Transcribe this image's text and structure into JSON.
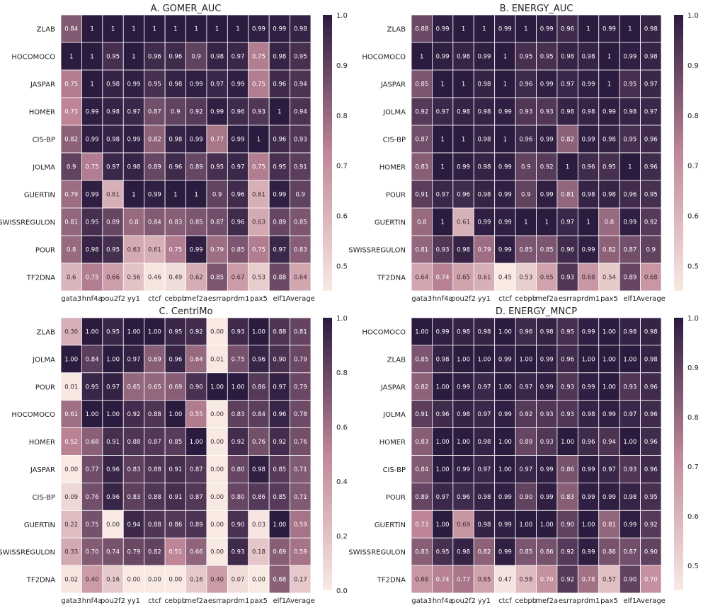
{
  "chart_data": [
    {
      "type": "heatmap",
      "title": "A.  GOMER_AUC",
      "columns": [
        "gata3",
        "hnf4a",
        "pou2f2",
        "yy1",
        "ctcf",
        "cebpb",
        "mef2a",
        "esrra",
        "prdm1",
        "pax5",
        "elf1",
        "Average"
      ],
      "rows": [
        "ZLAB",
        "HOCOMOCO",
        "JASPAR",
        "HOMER",
        "CIS-BP",
        "JOLMA",
        "GUERTIN",
        "SWISSREGULON",
        "POUR",
        "TF2DNA"
      ],
      "labels": [
        [
          "0.84",
          "1",
          "1",
          "1",
          "1",
          "1",
          "1",
          "1",
          "1",
          "0.99",
          "0.99",
          "0.98"
        ],
        [
          "1",
          "1",
          "0.95",
          "1",
          "0.96",
          "0.96",
          "0.9",
          "0.98",
          "0.97",
          "0.75",
          "0.98",
          "0.95"
        ],
        [
          "0.75",
          "1",
          "0.98",
          "0.99",
          "0.95",
          "0.98",
          "0.99",
          "0.97",
          "0.99",
          "0.75",
          "0.96",
          "0.94"
        ],
        [
          "0.73",
          "0.99",
          "0.98",
          "0.97",
          "0.87",
          "0.9",
          "0.92",
          "0.99",
          "0.96",
          "0.93",
          "1",
          "0.94"
        ],
        [
          "0.82",
          "0.99",
          "0.98",
          "0.99",
          "0.82",
          "0.98",
          "0.99",
          "0.77",
          "0.99",
          "1",
          "0.96",
          "0.93"
        ],
        [
          "0.9",
          "0.75",
          "0.97",
          "0.98",
          "0.89",
          "0.96",
          "0.89",
          "0.95",
          "0.97",
          "0.75",
          "0.95",
          "0.91"
        ],
        [
          "0.79",
          "0.99",
          "0.61",
          "1",
          "0.99",
          "1",
          "1",
          "0.9",
          "0.96",
          "0.61",
          "0.99",
          "0.9"
        ],
        [
          "0.81",
          "0.95",
          "0.89",
          "0.8",
          "0.84",
          "0.83",
          "0.85",
          "0.87",
          "0.96",
          "0.63",
          "0.89",
          "0.85"
        ],
        [
          "0.8",
          "0.98",
          "0.95",
          "0.63",
          "0.61",
          "0.75",
          "0.99",
          "0.79",
          "0.85",
          "0.75",
          "0.97",
          "0.83"
        ],
        [
          "0.6",
          "0.75",
          "0.66",
          "0.56",
          "0.46",
          "0.49",
          "0.62",
          "0.85",
          "0.67",
          "0.53",
          "0.88",
          "0.64"
        ]
      ],
      "colorbar": {
        "min": 0.45,
        "max": 1.0,
        "ticks": [
          "1.0",
          "0.9",
          "0.8",
          "0.7",
          "0.6",
          "0.5"
        ],
        "tick_values": [
          1.0,
          0.9,
          0.8,
          0.7,
          0.6,
          0.5
        ]
      }
    },
    {
      "type": "heatmap",
      "title": "B.  ENERGY_AUC",
      "columns": [
        "gata3",
        "hnf4a",
        "pou2f2",
        "yy1",
        "ctcf",
        "cebpb",
        "mef2a",
        "esrra",
        "prdm1",
        "pax5",
        "elf1",
        "Average"
      ],
      "rows": [
        "ZLAB",
        "HOCOMOCO",
        "JASPAR",
        "JOLMA",
        "CIS-BP",
        "HOMER",
        "POUR",
        "GUERTIN",
        "SWISSREGULON",
        "TF2DNA"
      ],
      "labels": [
        [
          "0.88",
          "0.99",
          "1",
          "1",
          "0.99",
          "1",
          "0.99",
          "0.96",
          "1",
          "0.99",
          "1",
          "0.98"
        ],
        [
          "1",
          "0.99",
          "0.98",
          "0.99",
          "1",
          "0.95",
          "0.95",
          "0.98",
          "0.98",
          "1",
          "0.99",
          "0.98"
        ],
        [
          "0.85",
          "1",
          "1",
          "0.98",
          "1",
          "0.96",
          "0.99",
          "0.97",
          "0.99",
          "1",
          "0.95",
          "0.97"
        ],
        [
          "0.92",
          "0.97",
          "0.98",
          "0.98",
          "0.99",
          "0.93",
          "0.93",
          "0.98",
          "0.98",
          "0.99",
          "0.98",
          "0.97"
        ],
        [
          "0.87",
          "1",
          "1",
          "0.98",
          "1",
          "0.96",
          "0.99",
          "0.82",
          "0.99",
          "0.98",
          "0.95",
          "0.96"
        ],
        [
          "0.83",
          "1",
          "0.99",
          "0.98",
          "0.99",
          "0.9",
          "0.92",
          "1",
          "0.96",
          "0.95",
          "1",
          "0.96"
        ],
        [
          "0.91",
          "0.97",
          "0.96",
          "0.98",
          "0.99",
          "0.9",
          "0.99",
          "0.81",
          "0.98",
          "0.98",
          "0.96",
          "0.95"
        ],
        [
          "0.8",
          "1",
          "0.61",
          "0.99",
          "0.99",
          "1",
          "1",
          "0.97",
          "1",
          "0.8",
          "0.99",
          "0.92"
        ],
        [
          "0.81",
          "0.93",
          "0.98",
          "0.79",
          "0.99",
          "0.85",
          "0.85",
          "0.96",
          "0.99",
          "0.82",
          "0.87",
          "0.9"
        ],
        [
          "0.64",
          "0.74",
          "0.65",
          "0.61",
          "0.45",
          "0.53",
          "0.65",
          "0.93",
          "0.68",
          "0.54",
          "0.89",
          "0.68"
        ]
      ],
      "colorbar": {
        "min": 0.45,
        "max": 1.0,
        "ticks": [
          "1.0",
          "0.9",
          "0.8",
          "0.7",
          "0.6",
          "0.5"
        ],
        "tick_values": [
          1.0,
          0.9,
          0.8,
          0.7,
          0.6,
          0.5
        ]
      }
    },
    {
      "type": "heatmap",
      "title": "C.  CentriMo",
      "columns": [
        "gata3",
        "hnf4a",
        "pou2f2",
        "yy1",
        "ctcf",
        "cebpb",
        "mef2a",
        "esrra",
        "prdm1",
        "pax5",
        "elf1",
        "Average"
      ],
      "rows": [
        "ZLAB",
        "JOLMA",
        "POUR",
        "HOCOMOCO",
        "HOMER",
        "JASPAR",
        "CIS-BP",
        "GUERTIN",
        "SWISSREGULON",
        "TF2DNA"
      ],
      "labels": [
        [
          "0.30",
          "1.00",
          "0.95",
          "1.00",
          "1.00",
          "0.95",
          "0.92",
          "0.00",
          "0.93",
          "1.00",
          "0.88",
          "0.81"
        ],
        [
          "1.00",
          "0.84",
          "1.00",
          "0.97",
          "0.69",
          "0.96",
          "0.64",
          "0.01",
          "0.75",
          "0.96",
          "0.90",
          "0.79"
        ],
        [
          "0.01",
          "0.95",
          "0.97",
          "0.65",
          "0.65",
          "0.69",
          "0.90",
          "1.00",
          "1.00",
          "0.86",
          "0.97",
          "0.79"
        ],
        [
          "0.61",
          "1.00",
          "1.00",
          "0.92",
          "0.88",
          "1.00",
          "0.55",
          "0.00",
          "0.83",
          "0.84",
          "0.96",
          "0.78"
        ],
        [
          "0.52",
          "0.68",
          "0.91",
          "0.88",
          "0.87",
          "0.85",
          "1.00",
          "0.00",
          "0.92",
          "0.76",
          "0.92",
          "0.76"
        ],
        [
          "0.00",
          "0.77",
          "0.96",
          "0.83",
          "0.88",
          "0.91",
          "0.87",
          "0.00",
          "0.80",
          "0.98",
          "0.85",
          "0.71"
        ],
        [
          "0.09",
          "0.76",
          "0.96",
          "0.83",
          "0.88",
          "0.91",
          "0.87",
          "0.00",
          "0.80",
          "0.86",
          "0.85",
          "0.71"
        ],
        [
          "0.22",
          "0.75",
          "0.00",
          "0.94",
          "0.88",
          "0.86",
          "0.89",
          "0.00",
          "0.90",
          "0.03",
          "1.00",
          "0.59"
        ],
        [
          "0.33",
          "0.70",
          "0.74",
          "0.79",
          "0.82",
          "0.51",
          "0.66",
          "0.00",
          "0.93",
          "0.18",
          "0.69",
          "0.59"
        ],
        [
          "0.02",
          "0.40",
          "0.16",
          "0.00",
          "0.00",
          "0.00",
          "0.16",
          "0.40",
          "0.07",
          "0.00",
          "0.68",
          "0.17"
        ]
      ],
      "colorbar": {
        "min": 0.0,
        "max": 1.0,
        "ticks": [
          "1.0",
          "0.8",
          "0.6",
          "0.4",
          "0.2",
          "0.0"
        ],
        "tick_values": [
          1.0,
          0.8,
          0.6,
          0.4,
          0.2,
          0.0
        ]
      }
    },
    {
      "type": "heatmap",
      "title": "D.  ENERGY_MNCP",
      "columns": [
        "gata3",
        "hnf4a",
        "pou2f2",
        "yy1",
        "ctcf",
        "cebpb",
        "mef2a",
        "esrra",
        "prdm1",
        "pax5",
        "elf1",
        "Average"
      ],
      "rows": [
        "HOCOMOCO",
        "ZLAB",
        "JASPAR",
        "JOLMA",
        "HOMER",
        "CIS-BP",
        "POUR",
        "GUERTIN",
        "SWISSREGULON",
        "TF2DNA"
      ],
      "labels": [
        [
          "1.00",
          "0.99",
          "0.98",
          "0.98",
          "1.00",
          "0.96",
          "0.98",
          "0.95",
          "0.99",
          "1.00",
          "0.98",
          "0.98"
        ],
        [
          "0.85",
          "0.98",
          "1.00",
          "1.00",
          "0.99",
          "1.00",
          "0.99",
          "0.96",
          "1.00",
          "1.00",
          "1.00",
          "0.98"
        ],
        [
          "0.82",
          "1.00",
          "0.99",
          "0.97",
          "1.00",
          "0.97",
          "0.99",
          "0.93",
          "0.99",
          "1.00",
          "0.93",
          "0.96"
        ],
        [
          "0.91",
          "0.96",
          "0.98",
          "0.97",
          "0.99",
          "0.92",
          "0.93",
          "0.93",
          "0.98",
          "0.99",
          "0.97",
          "0.96"
        ],
        [
          "0.83",
          "1.00",
          "1.00",
          "0.98",
          "1.00",
          "0.89",
          "0.93",
          "1.00",
          "0.96",
          "0.94",
          "1.00",
          "0.96"
        ],
        [
          "0.84",
          "1.00",
          "0.99",
          "0.97",
          "1.00",
          "0.97",
          "0.99",
          "0.86",
          "0.99",
          "0.97",
          "0.93",
          "0.96"
        ],
        [
          "0.89",
          "0.97",
          "0.96",
          "0.98",
          "0.99",
          "0.90",
          "0.99",
          "0.83",
          "0.99",
          "0.99",
          "0.98",
          "0.95"
        ],
        [
          "0.73",
          "1.00",
          "0.69",
          "0.98",
          "0.99",
          "1.00",
          "1.00",
          "0.90",
          "1.00",
          "0.81",
          "0.99",
          "0.92"
        ],
        [
          "0.83",
          "0.95",
          "0.98",
          "0.82",
          "0.99",
          "0.85",
          "0.86",
          "0.92",
          "0.99",
          "0.86",
          "0.87",
          "0.90"
        ],
        [
          "0.68",
          "0.74",
          "0.77",
          "0.65",
          "0.47",
          "0.58",
          "0.70",
          "0.92",
          "0.78",
          "0.57",
          "0.90",
          "0.70"
        ]
      ],
      "colorbar": {
        "min": 0.45,
        "max": 1.0,
        "ticks": [
          "1.0",
          "0.9",
          "0.8",
          "0.7",
          "0.6",
          "0.5"
        ],
        "tick_values": [
          1.0,
          0.9,
          0.8,
          0.7,
          0.6,
          0.5
        ]
      }
    }
  ],
  "colors": {
    "low": "#f8eae3",
    "mid": "#c08798",
    "high": "#2b1b3f",
    "grid_line": "#ffffff"
  }
}
